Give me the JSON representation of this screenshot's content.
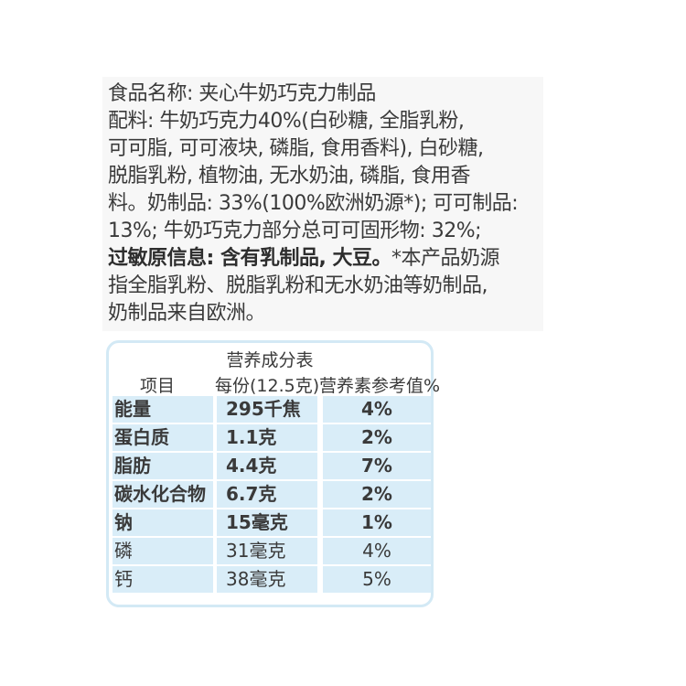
{
  "ingredients": {
    "lines": [
      "食品名称: 夹心牛奶巧克力制品",
      "配料: 牛奶巧克力40%(白砂糖, 全脂乳粉,",
      "可可脂, 可可液块, 磷脂, 食用香料), 白砂糖,",
      "脱脂乳粉, 植物油, 无水奶油, 磷脂, 食用香",
      "料。奶制品: 33%(100%欧洲奶源*); 可可制品:",
      "13%; 牛奶巧克力部分总可可固形物: 32%;"
    ],
    "allergen_bold": "过敏原信息: 含有乳制品, 大豆。",
    "allergen_rest": "*本产品奶源",
    "tail_lines": [
      "指全脂乳粉、脱脂乳粉和无水奶油等奶制品,",
      "奶制品来自欧洲。"
    ]
  },
  "nutrition": {
    "title": "营养成分表",
    "headers": [
      "项目",
      "每份(12.5克)",
      "营养素参考值%"
    ],
    "rows": [
      {
        "item": "能量",
        "amount": "295千焦",
        "nrv": "4%",
        "bold": true
      },
      {
        "item": "蛋白质",
        "amount": "1.1克",
        "nrv": "2%",
        "bold": true
      },
      {
        "item": "脂肪",
        "amount": "4.4克",
        "nrv": "7%",
        "bold": true
      },
      {
        "item": "碳水化合物",
        "amount": "6.7克",
        "nrv": "2%",
        "bold": true
      },
      {
        "item": "钠",
        "amount": "15毫克",
        "nrv": "1%",
        "bold": true
      },
      {
        "item": "磷",
        "amount": "31毫克",
        "nrv": "4%",
        "bold": false
      },
      {
        "item": "钙",
        "amount": "38毫克",
        "nrv": "5%",
        "bold": false
      }
    ],
    "colors": {
      "border": "#d3e9f5",
      "cell": "#d9edf8"
    }
  }
}
